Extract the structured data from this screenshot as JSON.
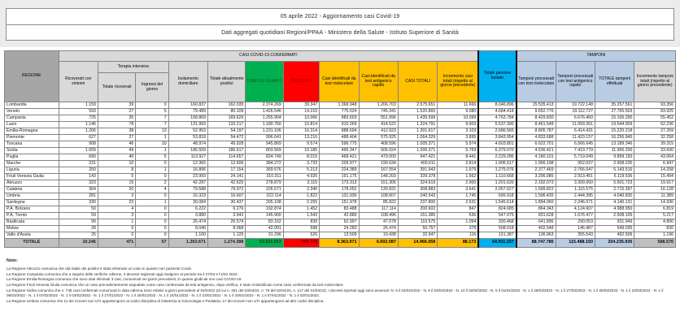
{
  "titles": {
    "line1": "05 aprile 2022 - Aggiornamento casi Covid-19",
    "line2": "Dati aggregati quotidiani Regioni/PPAA - Ministero della Salute - Istituto Superiore di Sanità"
  },
  "colors": {
    "green": "#00B050",
    "red": "#FF0000",
    "yellow": "#FFC000",
    "cyan": "#00B0F0",
    "light_blue": "#B8CCE4",
    "header_gray": "#D9D9D9",
    "regione_header_gray": "#A6A6A6",
    "total_row_gray": "#BFBFBF"
  },
  "table": {
    "columns": {
      "regione": "REGIONE",
      "confermati_group": "CASI COVID-19 CONFERMATI",
      "ricoverati": "Ricoverati con sintomi",
      "terapia_group": "Terapia intensiva",
      "terapia_totale": "Totale ricoverati",
      "terapia_ingressi": "Ingressi del giorno",
      "isolamento": "Isolamento domiciliare",
      "attualmente_positivi": "Totale attualmente positivi",
      "dimessi_guariti": "DIMESSI GUARITI",
      "deceduti": "DECEDUTI",
      "casi_molecolare": "Casi identificati da test molecolare",
      "casi_antigenico": "Casi identificati da test antigenico rapido",
      "casi_totali": "CASI TOTALI",
      "incremento_casi": "Incremento casi totali (rispetto al giorno precedente)",
      "persone_testate": "Totale persone testate",
      "tamponi_group": "TAMPONI",
      "tamponi_molecolare": "Tamponi processati con test molecolare",
      "tamponi_antigenico": "Tamponi processati con test antigenico rapido",
      "tamponi_totale": "TOTALE tamponi effettuati",
      "incremento_tamponi": "Incremento tamponi totali (rispetto al giorno precedente)"
    },
    "rows": [
      {
        "name": "Lombardia",
        "values": [
          "1.159",
          "39",
          "0",
          "160.837",
          "162.035",
          "2.374.269",
          "39.347",
          "1.368.948",
          "1.206.703",
          "2.575.651",
          "11.666",
          "8.046.896",
          "15.535.413",
          "19.722.148",
          "35.257.561",
          "93.356"
        ]
      },
      {
        "name": "Veneto",
        "values": [
          "593",
          "27",
          "5",
          "79.489",
          "80.109",
          "1.426.546",
          "14.210",
          "775.524",
          "745.341",
          "1.520.865",
          "9.080",
          "4.684.418",
          "9.652.776",
          "18.112.727",
          "27.765.503",
          "83.925"
        ]
      },
      {
        "name": "Campania",
        "values": [
          "725",
          "35",
          "7",
          "168.869",
          "169.629",
          "1.255.904",
          "10.066",
          "883.603",
          "551.996",
          "1.435.599",
          "10.099",
          "4.763.784",
          "8.429.830",
          "6.676.460",
          "15.106.290",
          "55.452"
        ]
      },
      {
        "name": "Lazio",
        "values": [
          "1.146",
          "78",
          "7",
          "131.993",
          "133.217",
          "1.180.760",
          "10.814",
          "910.269",
          "414.522",
          "1.324.791",
          "9.903",
          "5.537.390",
          "8.451.548",
          "11.093.361",
          "19.544.909",
          "62.236"
        ]
      },
      {
        "name": "Emilia-Romagna",
        "values": [
          "1.206",
          "38",
          "13",
          "52.953",
          "54.197",
          "1.231.106",
          "16.314",
          "888.694",
          "412.923",
          "1.301.617",
          "3.103",
          "2.686.565",
          "8.805.787",
          "6.414.431",
          "15.220.218",
          "27.259"
        ]
      },
      {
        "name": "Piemonte",
        "values": [
          "627",
          "27",
          "1",
          "53.818",
          "54.472",
          "996.641",
          "13.216",
          "488.404",
          "575.925",
          "1.064.329",
          "3.895",
          "3.843.954",
          "4.833.688",
          "11.423.157",
          "16.256.845",
          "32.258"
        ]
      },
      {
        "name": "Toscana",
        "values": [
          "908",
          "46",
          "10",
          "48.974",
          "49.928",
          "945.869",
          "9.574",
          "596.775",
          "408.596",
          "1.005.371",
          "5.974",
          "4.603.801",
          "6.622.701",
          "6.566.645",
          "13.189.346",
          "39.315"
        ]
      },
      {
        "name": "Sicilia",
        "values": [
          "1.009",
          "49",
          "1",
          "185.559",
          "186.617",
          "803.569",
          "10.185",
          "495.347",
          "505.024",
          "1.000.371",
          "5.769",
          "6.379.070",
          "4.536.421",
          "7.419.779",
          "11.956.200",
          "33.690"
        ]
      },
      {
        "name": "Puglia",
        "values": [
          "690",
          "40",
          "5",
          "113.927",
          "114.657",
          "824.749",
          "8.015",
          "468.421",
          "479.000",
          "947.421",
          "8.441",
          "2.229.286",
          "4.180.101",
          "5.719.049",
          "9.899.150",
          "43.064"
        ]
      },
      {
        "name": "Marche",
        "values": [
          "231",
          "10",
          "0",
          "12.365",
          "12.606",
          "384.272",
          "3.733",
          "209.977",
          "190.634",
          "400.611",
          "2.814",
          "1.906.917",
          "1.956.198",
          "952.037",
          "2.908.235",
          "6.947"
        ]
      },
      {
        "name": "Liguria",
        "values": [
          "250",
          "8",
          "1",
          "16.896",
          "17.154",
          "369.576",
          "5.213",
          "224.389",
          "167.554",
          "391.943",
          "1.979",
          "1.275.076",
          "2.377.469",
          "2.766.047",
          "5.143.516",
          "14.258"
        ]
      },
      {
        "name": "Friuli Venezia Giulia",
        "values": [
          "143",
          "5",
          "0",
          "23.993",
          "24.141",
          "310.311",
          "4.926",
          "191.175",
          "148.203",
          "339.378",
          "1.562",
          "1.110.668",
          "3.206.085",
          "2.913.451",
          "6.119.536",
          "15.494"
        ]
      },
      {
        "name": "Abruzzo",
        "values": [
          "323",
          "15",
          "2",
          "42.287",
          "42.625",
          "278.879",
          "3.115",
          "173.313",
          "151.306",
          "324.619",
          "2.900",
          "1.201.620",
          "2.192.073",
          "3.309.650",
          "5.501.723",
          "19.917"
        ]
      },
      {
        "name": "Calabria",
        "values": [
          "364",
          "20",
          "4",
          "79.588",
          "79.972",
          "226.571",
          "2.340",
          "178.052",
          "130.831",
          "308.883",
          "3.641",
          "2.057.627",
          "1.599.822",
          "1.115.575",
          "2.715.397",
          "16.128"
        ]
      },
      {
        "name": "Umbria",
        "values": [
          "281",
          "3",
          "0",
          "16.323",
          "16.607",
          "222.114",
          "1.822",
          "131.936",
          "108.607",
          "240.543",
          "1.745",
          "696.918",
          "1.596.435",
          "2.444.395",
          "4.040.830",
          "11.389"
        ]
      },
      {
        "name": "Sardegna",
        "values": [
          "330",
          "23",
          "1",
          "30.084",
          "30.437",
          "205.108",
          "2.255",
          "151.978",
          "85.822",
          "237.800",
          "2.631",
          "1.545.614",
          "1.894.060",
          "2.246.071",
          "4.140.131",
          "14.936"
        ]
      },
      {
        "name": "P.A. Bolzano",
        "values": [
          "50",
          "4",
          "0",
          "6.222",
          "6.276",
          "192.874",
          "1.452",
          "83.488",
          "117.114",
          "200.602",
          "847",
          "824.685",
          "864.343",
          "4.124.607",
          "4.988.950",
          "6.819"
        ]
      },
      {
        "name": "P.A. Trento",
        "values": [
          "59",
          "3",
          "0",
          "3.880",
          "3.942",
          "145.900",
          "1.543",
          "42.889",
          "108.496",
          "151.385",
          "536",
          "547.075",
          "831.628",
          "1.676.477",
          "2.508.105",
          "5.217"
        ]
      },
      {
        "name": "Basilicata",
        "values": [
          "99",
          "1",
          "0",
          "26.474",
          "26.574",
          "83.162",
          "839",
          "62.997",
          "47.578",
          "110.575",
          "1.094",
          "330.468",
          "641.896",
          "290.053",
          "931.949",
          "4.890"
        ]
      },
      {
        "name": "Molise",
        "values": [
          "28",
          "0",
          "0",
          "8.040",
          "8.068",
          "42.091",
          "598",
          "24.283",
          "26.474",
          "50.757",
          "378",
          "508.018",
          "402.548",
          "146.487",
          "549.035",
          "830"
        ]
      },
      {
        "name": "Valle d'Aosta",
        "values": [
          "25",
          "0",
          "0",
          "1.100",
          "1.125",
          "31.296",
          "526",
          "13.509",
          "19.438",
          "32.947",
          "116",
          "131.387",
          "136.963",
          "355.543",
          "492.506",
          "1.196"
        ]
      }
    ],
    "total": {
      "name": "TOTALE",
      "values": [
        "10.246",
        "471",
        "57",
        "1.263.671",
        "1.274.388",
        "13.531.567",
        "160.103",
        "8.363.971",
        "6.602.087",
        "14.966.058",
        "88.173",
        "54.911.237",
        "88.747.785",
        "115.488.150",
        "204.235.935",
        "588.576"
      ]
    }
  },
  "notes": {
    "title": "Note:",
    "lines": [
      "La Regione Abruzzo comunica che dal totale dei positivi è stato eliminato un caso in quanto non paziente Covid.",
      "La Regione Campania comunica che a seguito delle verifiche odierne, 3 decessi registrati oggi risalgono al periodo tra il 27/03 e l'1/04 2022.",
      "La Regione Emilia-Romagna comunica che sono stati eliminati 3 casi, comunicati nei giorni precedenti, in quanto giudicati non casi COVID-19.",
      "La Regione Friuli Venezia Giulia comunica che un caso precedentemente segnalato come caso confermato da test antigenico, dopo verifica, è stato riclassificato come caso confermato da test molecolare.",
      "La Regione Sicilia comunica che n. 745 casi confermati comunicati in data odierna sono relativi a giorni precedenti al 04/04/22 (di cui n. 461 del 03/04/22, n. 79 del 02/04/22, n. 117 del 01/04/22). I decessi riportati oggi sono avvenuti: N. 5 il 04/04/2022 - N. 9 il 03/04/2022 - N. 10 il 02/04/2022 - N. 5 il 01/04/2022 - N. 1 il 28/03/2022 - N. 1 il 27/03/2022 - N. 1 il 25/03/2022 - N. 1 il 23/03/2022 - N. 1 il 06/03/2022 - N. 1 il 07/02/2022 - N. 1 il 03/02/2022 - N. 1 il 27/01/2022 - N. 1 il 25/01/2022 - N. 1 il 24/01/2022 - N. 1 il 23/01/2022 - N. 1 il 20/01/2022 - N. 1 il 07/01/2022 - N. 1 il 02/01/2022.",
      "La Regione Umbria comunica che 11 dei ricoveri non UTI appartengono ai codici disciplina di Ostetricia & Ginecologia e Pediatria; 17 dei ricoveri non UTI appartengono ad altri codici disciplina."
    ]
  }
}
